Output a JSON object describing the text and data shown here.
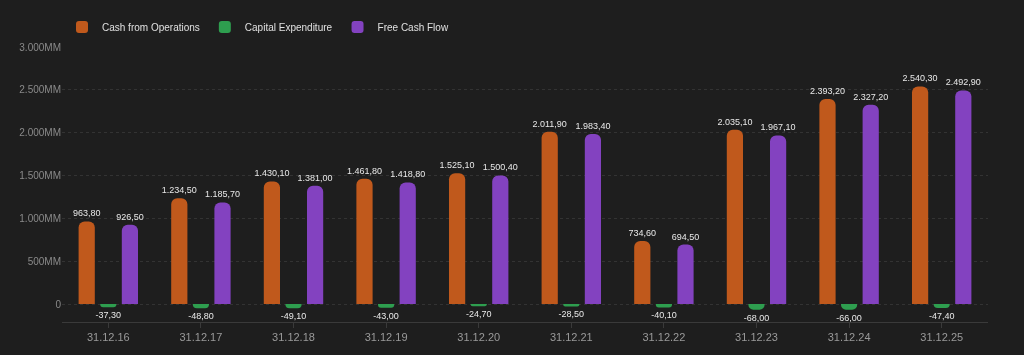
{
  "chart_data": {
    "type": "bar",
    "categories": [
      "31.12.16",
      "31.12.17",
      "31.12.18",
      "31.12.19",
      "31.12.20",
      "31.12.21",
      "31.12.22",
      "31.12.23",
      "31.12.24",
      "31.12.25"
    ],
    "series": [
      {
        "name": "Cash from Operations",
        "color": "#c0591c",
        "values": [
          963.8,
          1234.5,
          1430.1,
          1461.8,
          1525.1,
          2011.9,
          734.6,
          2035.1,
          2393.2,
          2540.3
        ],
        "value_labels": [
          "963,80",
          "1.234,50",
          "1.430,10",
          "1.461,80",
          "1.525,10",
          "2.011,90",
          "734,60",
          "2.035,10",
          "2.393,20",
          "2.540,30"
        ]
      },
      {
        "name": "Capital Expenditure",
        "color": "#2e9e4f",
        "values": [
          -37.3,
          -48.8,
          -49.1,
          -43.0,
          -24.7,
          -28.5,
          -40.1,
          -68.0,
          -66.0,
          -47.4
        ],
        "value_labels": [
          "-37,30",
          "-48,80",
          "-49,10",
          "-43,00",
          "-24,70",
          "-28,50",
          "-40,10",
          "-68,00",
          "-66,00",
          "-47,40"
        ]
      },
      {
        "name": "Free Cash Flow",
        "color": "#8342c0",
        "values": [
          926.5,
          1185.7,
          1381.0,
          1418.8,
          1500.4,
          1983.4,
          694.5,
          1967.1,
          2327.2,
          2492.9
        ],
        "value_labels": [
          "926,50",
          "1.185,70",
          "1.381,00",
          "1.418,80",
          "1.500,40",
          "1.983,40",
          "694,50",
          "1.967,10",
          "2.327,20",
          "2.492,90"
        ]
      }
    ],
    "ylim": [
      -210,
      3000
    ],
    "yticks": [
      0,
      {
        "value": 500,
        "label": "500MM"
      },
      {
        "value": 1000,
        "label": "1.000MM"
      },
      {
        "value": 1500,
        "label": "1.500MM"
      },
      {
        "value": 2000,
        "label": "2.000MM"
      },
      {
        "value": 2500,
        "label": "2.500MM"
      },
      {
        "value": 3000,
        "label": "3.000MM"
      }
    ],
    "grid": "y",
    "legend": "top left"
  }
}
